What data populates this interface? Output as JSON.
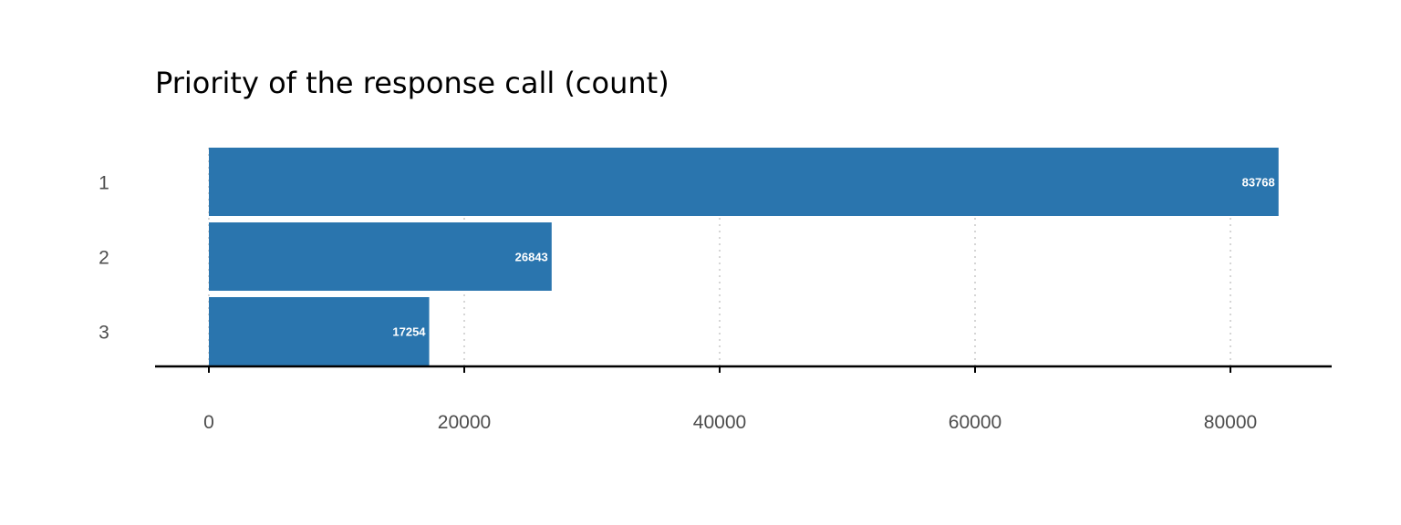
{
  "chart_data": {
    "type": "bar",
    "orientation": "horizontal",
    "title": "Priority of the response call (count)",
    "categories": [
      "1",
      "2",
      "3"
    ],
    "values": [
      83768,
      26843,
      17254
    ],
    "xlim": [
      0,
      88000
    ],
    "xticks": [
      0,
      20000,
      40000,
      60000,
      80000
    ],
    "grid": "vertical dotted",
    "legend": "none",
    "bar_color": "#2a75ae",
    "data_label_color": "#ffffff"
  }
}
